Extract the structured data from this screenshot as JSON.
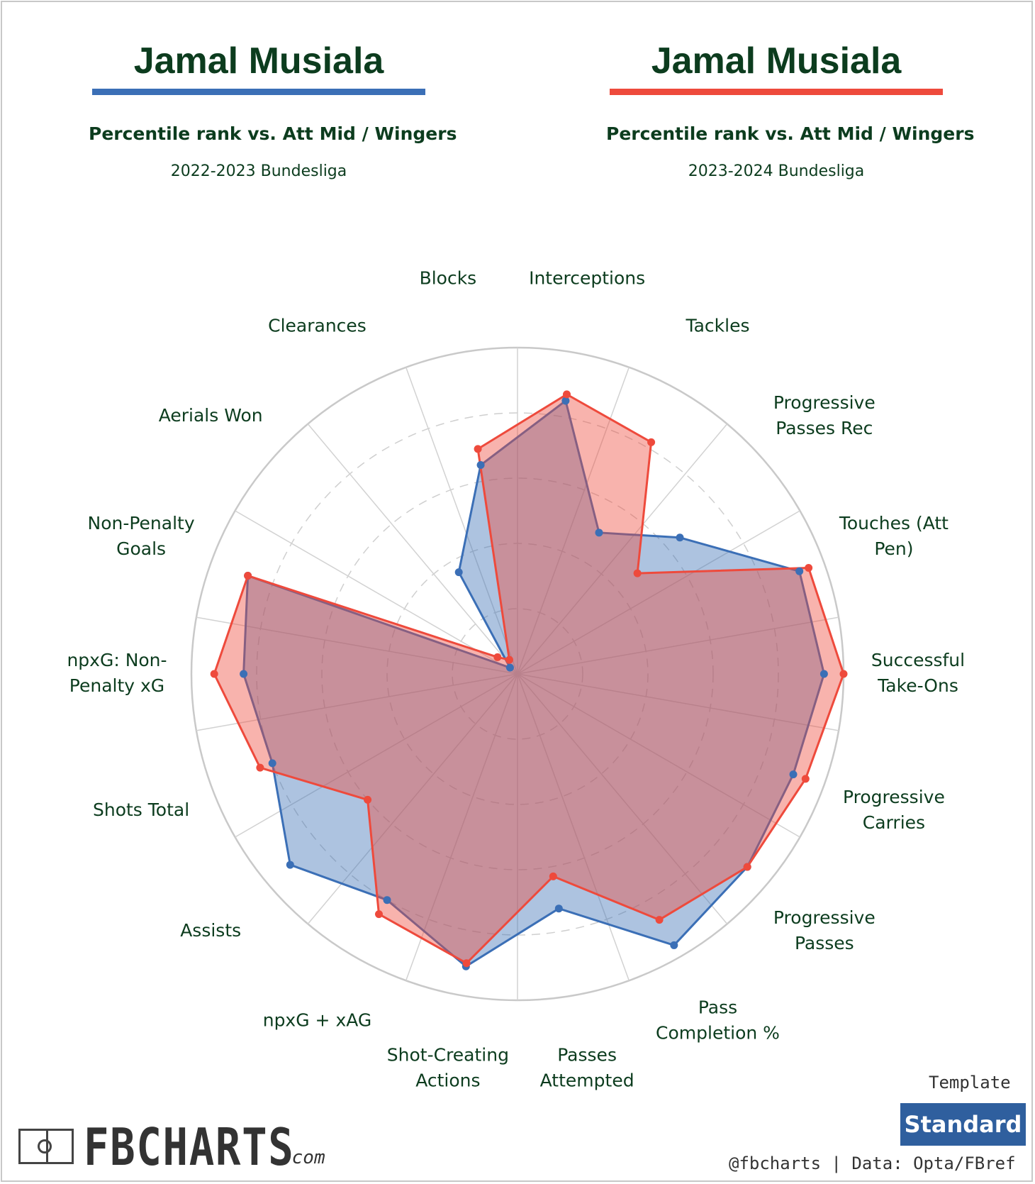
{
  "players": [
    {
      "name": "Jamal Musiala",
      "subtitle": "Percentile rank vs. Att Mid / Wingers",
      "season": "2022-2023 Bundesliga",
      "color": "#3b6fb6"
    },
    {
      "name": "Jamal Musiala",
      "subtitle": "Percentile rank vs. Att Mid / Wingers",
      "season": "2023-2024 Bundesliga",
      "color": "#ee4a3c"
    }
  ],
  "chart_data": {
    "type": "radar",
    "axes": [
      [
        "Successful",
        "Take-Ons"
      ],
      [
        "Touches (Att",
        "Pen)"
      ],
      [
        "Progressive",
        "Passes Rec"
      ],
      [
        "Tackles"
      ],
      [
        "Interceptions"
      ],
      [
        "Blocks"
      ],
      [
        "Clearances"
      ],
      [
        "Aerials Won"
      ],
      [
        "Non-Penalty",
        "Goals"
      ],
      [
        "npxG: Non-",
        "Penalty xG"
      ],
      [
        "Shots Total"
      ],
      [
        "Assists"
      ],
      [
        "npxG + xAG"
      ],
      [
        "Shot-Creating",
        "Actions"
      ],
      [
        "Passes",
        "Attempted"
      ],
      [
        "Pass",
        "Completion %"
      ],
      [
        "Progressive",
        "Passes"
      ],
      [
        "Progressive",
        "Carries"
      ]
    ],
    "rlim": [
      0,
      100
    ],
    "grid_rings": [
      20,
      40,
      60,
      80
    ],
    "series": [
      {
        "values": [
          94,
          92,
          65,
          50,
          85,
          65,
          36,
          3,
          88,
          84,
          80,
          91,
          80,
          91,
          73,
          96,
          92,
          90
        ],
        "color": "#3b6fb6"
      },
      {
        "values": [
          100,
          95,
          48,
          82,
          87,
          70,
          5,
          8,
          88,
          93,
          84,
          60,
          85,
          90,
          63,
          87,
          92,
          94
        ],
        "color": "#ee4a3c"
      }
    ]
  },
  "footer": {
    "template_caption": "Template",
    "template_value": "Standard",
    "credit": "@fbcharts | Data: Opta/FBref",
    "brand_name": "FBCHARTS",
    "brand_suffix": ".com"
  }
}
